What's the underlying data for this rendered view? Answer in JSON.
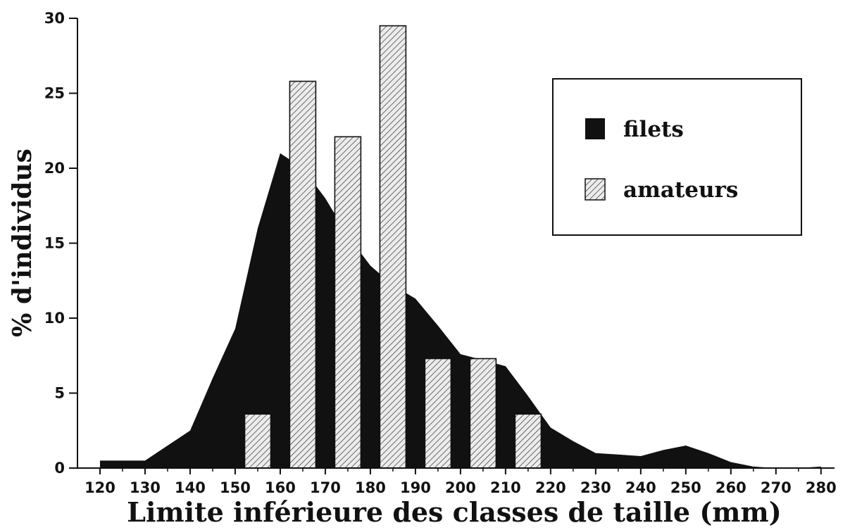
{
  "chart_data": {
    "type": "bar",
    "xlabel": "Limite inférieure des classes de taille (mm)",
    "ylabel": "% d'individus",
    "xlim": [
      115,
      283
    ],
    "ylim": [
      0,
      30
    ],
    "x_ticks": [
      120,
      130,
      140,
      150,
      160,
      170,
      180,
      190,
      200,
      210,
      220,
      230,
      240,
      250,
      260,
      270,
      280
    ],
    "y_ticks": [
      0,
      5,
      10,
      15,
      20,
      25,
      30
    ],
    "legend_position": "top-right",
    "grid": false,
    "series": [
      {
        "name": "filets",
        "kind": "area",
        "color": "#111111",
        "x": [
          120,
          122,
          125,
          130,
          135,
          140,
          145,
          150,
          155,
          160,
          165,
          170,
          175,
          180,
          185,
          190,
          195,
          200,
          205,
          210,
          215,
          220,
          225,
          230,
          235,
          240,
          245,
          250,
          255,
          260,
          265,
          270,
          275,
          280
        ],
        "values": [
          0.5,
          0.5,
          0.5,
          0.5,
          1.5,
          2.5,
          6,
          9.3,
          16,
          21,
          20,
          18,
          15.5,
          13.5,
          12.2,
          11.3,
          9.5,
          7.6,
          7.2,
          6.8,
          4.8,
          2.7,
          1.8,
          1.0,
          0.9,
          0.8,
          1.2,
          1.5,
          1.0,
          0.4,
          0.1,
          0.0,
          0.0,
          0.1
        ]
      },
      {
        "name": "amateurs",
        "kind": "bar",
        "color": "#e8e8e8",
        "hatch": true,
        "x": [
          150,
          160,
          170,
          180,
          190,
          200,
          210
        ],
        "values": [
          3.6,
          25.8,
          22.1,
          29.5,
          7.3,
          7.3,
          3.6
        ]
      }
    ]
  }
}
